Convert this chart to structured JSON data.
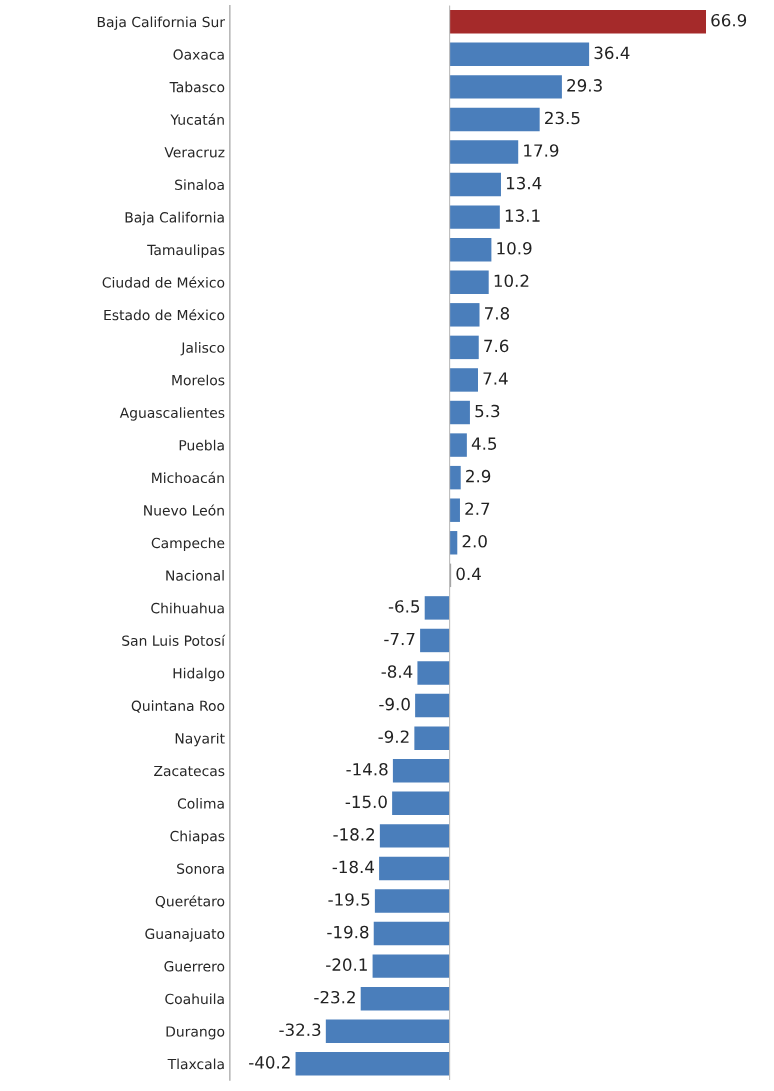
{
  "chart_data": {
    "type": "bar",
    "orientation": "horizontal",
    "categories": [
      "Baja California Sur",
      "Oaxaca",
      "Tabasco",
      "Yucatán",
      "Veracruz",
      "Sinaloa",
      "Baja California",
      "Tamaulipas",
      "Ciudad de México",
      "Estado de México",
      "Jalisco",
      "Morelos",
      "Aguascalientes",
      "Puebla",
      "Michoacán",
      "Nuevo León",
      "Campeche",
      "Nacional",
      "Chihuahua",
      "San Luis Potosí",
      "Hidalgo",
      "Quintana Roo",
      "Nayarit",
      "Zacatecas",
      "Colima",
      "Chiapas",
      "Sonora",
      "Querétaro",
      "Guanajuato",
      "Guerrero",
      "Coahuila",
      "Durango",
      "Tlaxcala"
    ],
    "values": [
      66.9,
      36.4,
      29.3,
      23.5,
      17.9,
      13.4,
      13.1,
      10.9,
      10.2,
      7.8,
      7.6,
      7.4,
      5.3,
      4.5,
      2.9,
      2.7,
      2.0,
      0.4,
      -6.5,
      -7.7,
      -8.4,
      -9.0,
      -9.2,
      -14.8,
      -15.0,
      -18.2,
      -18.4,
      -19.5,
      -19.8,
      -20.1,
      -23.2,
      -32.3,
      -40.2
    ],
    "colors": [
      "#a52a2a",
      "#4a7ebb",
      "#4a7ebb",
      "#4a7ebb",
      "#4a7ebb",
      "#4a7ebb",
      "#4a7ebb",
      "#4a7ebb",
      "#4a7ebb",
      "#4a7ebb",
      "#4a7ebb",
      "#4a7ebb",
      "#4a7ebb",
      "#4a7ebb",
      "#4a7ebb",
      "#4a7ebb",
      "#4a7ebb",
      "#a0a0a0",
      "#4a7ebb",
      "#4a7ebb",
      "#4a7ebb",
      "#4a7ebb",
      "#4a7ebb",
      "#4a7ebb",
      "#4a7ebb",
      "#4a7ebb",
      "#4a7ebb",
      "#4a7ebb",
      "#4a7ebb",
      "#4a7ebb",
      "#4a7ebb",
      "#4a7ebb",
      "#4a7ebb"
    ],
    "value_labels": [
      "66.9",
      "36.4",
      "29.3",
      "23.5",
      "17.9",
      "13.4",
      "13.1",
      "10.9",
      "10.2",
      "7.8",
      "7.6",
      "7.4",
      "5.3",
      "4.5",
      "2.9",
      "2.7",
      "2.0",
      "0.4",
      "-6.5",
      "-7.7",
      "-8.4",
      "-9.0",
      "-9.2",
      "-14.8",
      "-15.0",
      "-18.2",
      "-18.4",
      "-19.5",
      "-19.8",
      "-20.1",
      "-23.2",
      "-32.3",
      "-40.2"
    ],
    "tick_labels": "y",
    "grid": false,
    "legend": false
  }
}
